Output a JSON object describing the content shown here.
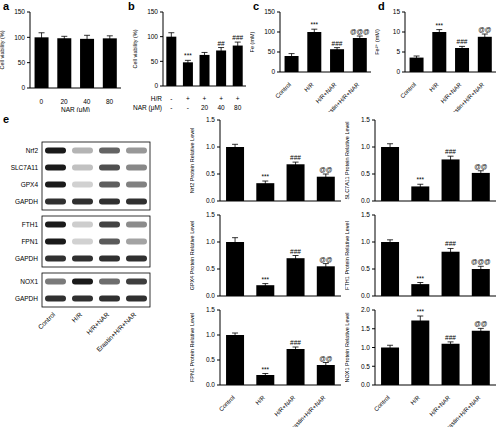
{
  "chart_data": [
    {
      "panel": "a",
      "type": "bar",
      "categories": [
        "0",
        "20",
        "40",
        "80"
      ],
      "x_label": "NAR (μM)",
      "y_label": "Cell viability (%)",
      "values": [
        100,
        98,
        97,
        98
      ],
      "errors": [
        9,
        4,
        7,
        5
      ],
      "color": "#000000",
      "ylim": [
        0,
        150
      ],
      "yticks": [
        0,
        50,
        100,
        150
      ]
    },
    {
      "panel": "b",
      "type": "bar",
      "x_rows": [
        {
          "label": "H/R",
          "values": [
            "-",
            "+",
            "+",
            "+",
            "+"
          ]
        },
        {
          "label": "NAR (μM)",
          "values": [
            "-",
            "-",
            "20",
            "40",
            "80"
          ]
        }
      ],
      "y_label": "Cell viability (%)",
      "values": [
        100,
        48,
        63,
        72,
        82
      ],
      "errors": [
        8,
        4,
        5,
        6,
        7
      ],
      "annotations": [
        null,
        "***",
        null,
        "##",
        "###"
      ],
      "color": "#000000",
      "ylim": [
        0,
        150
      ],
      "yticks": [
        0,
        50,
        100,
        150
      ]
    },
    {
      "panel": "c",
      "type": "bar",
      "categories": [
        "Control",
        "H/R",
        "H/R+NAR",
        "Erastin+H/R+NAR"
      ],
      "y_label": "Fe (mM)",
      "values": [
        40,
        100,
        57,
        85
      ],
      "errors": [
        6,
        7,
        4,
        5
      ],
      "annotations": [
        null,
        "***",
        "###",
        "@@@"
      ],
      "color": "#000000",
      "ylim": [
        0,
        150
      ],
      "yticks": [
        0,
        50,
        100,
        150
      ]
    },
    {
      "panel": "d",
      "type": "bar",
      "categories": [
        "Control",
        "H/R",
        "H/R+NAR",
        "Erastin+H/R+NAR"
      ],
      "y_label": "Fe²⁺ (mM)",
      "values": [
        3.6,
        10,
        6,
        8.8
      ],
      "errors": [
        0.4,
        0.6,
        0.4,
        0.7
      ],
      "annotations": [
        null,
        "***",
        "###",
        "@@"
      ],
      "color": "#000000",
      "ylim": [
        0,
        15
      ],
      "yticks": [
        0,
        5,
        10,
        15
      ]
    },
    {
      "type": "bar",
      "tick_labels": "y",
      "y_label": "Nrf2 Protein Relative Level",
      "values": [
        1.0,
        0.33,
        0.68,
        0.45
      ],
      "errors": [
        0.05,
        0.04,
        0.04,
        0.05
      ],
      "annotations": [
        null,
        "***",
        "###",
        "@@"
      ],
      "color": "#000000",
      "ylim": [
        0,
        1.5
      ],
      "yticks": [
        {
          "value": 0,
          "label": "0.0"
        },
        {
          "value": 0.5,
          "label": "0.5"
        },
        {
          "value": 1,
          "label": "1.0"
        },
        {
          "value": 1.5,
          "label": "1.5"
        }
      ]
    },
    {
      "type": "bar",
      "tick_labels": "y",
      "y_label": "SLC7A11 Protein Relative Level",
      "values": [
        1.0,
        0.27,
        0.77,
        0.52
      ],
      "errors": [
        0.06,
        0.04,
        0.06,
        0.04
      ],
      "annotations": [
        null,
        "***",
        "###",
        "@@"
      ],
      "color": "#000000",
      "ylim": [
        0,
        1.5
      ],
      "yticks": [
        {
          "value": 0,
          "label": "0.0"
        },
        {
          "value": 0.5,
          "label": "0.5"
        },
        {
          "value": 1,
          "label": "1.0"
        },
        {
          "value": 1.5,
          "label": "1.5"
        }
      ]
    },
    {
      "type": "bar",
      "tick_labels": "y",
      "y_label": "GPX4 Protein Relative Level",
      "values": [
        1.0,
        0.2,
        0.7,
        0.55
      ],
      "errors": [
        0.08,
        0.03,
        0.05,
        0.05
      ],
      "annotations": [
        null,
        "***",
        "###",
        "@@"
      ],
      "color": "#000000",
      "ylim": [
        0,
        1.5
      ],
      "yticks": [
        {
          "value": 0,
          "label": "0.0"
        },
        {
          "value": 0.5,
          "label": "0.5"
        },
        {
          "value": 1,
          "label": "1.0"
        },
        {
          "value": 1.5,
          "label": "1.5"
        }
      ]
    },
    {
      "type": "bar",
      "tick_labels": "y",
      "y_label": "FTH1 Protein Relative Level",
      "values": [
        1.0,
        0.22,
        0.82,
        0.5
      ],
      "errors": [
        0.04,
        0.03,
        0.06,
        0.05
      ],
      "annotations": [
        null,
        "***",
        "###",
        "@@@"
      ],
      "color": "#000000",
      "ylim": [
        0,
        1.5
      ],
      "yticks": [
        {
          "value": 0,
          "label": "0.0"
        },
        {
          "value": 0.5,
          "label": "0.5"
        },
        {
          "value": 1,
          "label": "1.0"
        },
        {
          "value": 1.5,
          "label": "1.5"
        }
      ]
    },
    {
      "type": "bar",
      "categories": [
        "Control",
        "H/R",
        "H/R+NAR",
        "Erastin+H/R+NAR"
      ],
      "y_label": "FPN1 Protein Relative Level",
      "values": [
        1.0,
        0.2,
        0.72,
        0.4
      ],
      "errors": [
        0.04,
        0.03,
        0.04,
        0.05
      ],
      "annotations": [
        null,
        "***",
        "###",
        "@@"
      ],
      "color": "#000000",
      "ylim": [
        0,
        1.5
      ],
      "yticks": [
        {
          "value": 0,
          "label": "0.0"
        },
        {
          "value": 0.5,
          "label": "0.5"
        },
        {
          "value": 1,
          "label": "1.0"
        },
        {
          "value": 1.5,
          "label": "1.5"
        }
      ]
    },
    {
      "type": "bar",
      "categories": [
        "Control",
        "H/R",
        "H/R+NAR",
        "Erastin+H/R+NAR"
      ],
      "y_label": "NOX1 Protein Relative Level",
      "values": [
        1.0,
        1.72,
        1.1,
        1.45
      ],
      "errors": [
        0.06,
        0.12,
        0.05,
        0.06
      ],
      "annotations": [
        null,
        "***",
        "###",
        "@@"
      ],
      "color": "#000000",
      "ylim": [
        0,
        2
      ],
      "yticks": [
        {
          "value": 0,
          "label": "0.0"
        },
        {
          "value": 0.5,
          "label": "0.5"
        },
        {
          "value": 1,
          "label": "1.0"
        },
        {
          "value": 1.5,
          "label": "1.5"
        },
        {
          "value": 2,
          "label": "2.0"
        }
      ]
    }
  ],
  "western_blot": {
    "panel": "e",
    "groups": [
      [
        "Nrf2",
        "SLC7A11",
        "GPX4",
        "GAPDH"
      ],
      [
        "FTH1",
        "FPN1",
        "GAPDH"
      ],
      [
        "NOX1",
        "GAPDH"
      ]
    ],
    "lanes": [
      "Control",
      "H/R",
      "H/R+NAR",
      "Erastin+H/R+NAR"
    ]
  }
}
